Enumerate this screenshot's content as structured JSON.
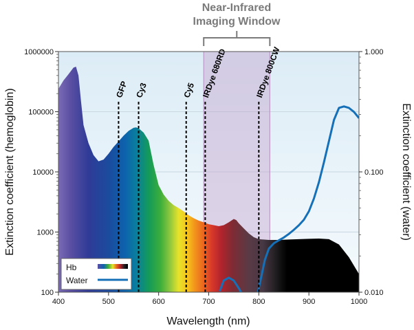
{
  "chart_data": {
    "type": "area",
    "xlabel": "Wavelength (nm)",
    "ylabel_left": "Extinction coefficient (hemoglobin)",
    "ylabel_right": "Extinction coefficient (water)",
    "xlim": [
      400,
      1000
    ],
    "ylim_left": [
      100,
      1000000
    ],
    "ylim_right": [
      0.01,
      1.0
    ],
    "yscale_left": "log",
    "yscale_right": "log",
    "x_ticks": [
      "400",
      "500",
      "600",
      "700",
      "800",
      "900",
      "1000"
    ],
    "y_ticks_left": [
      "100",
      "1000",
      "10000",
      "100000",
      "1000000"
    ],
    "y_ticks_right": [
      "0.010",
      "0.100",
      "1.000"
    ],
    "grid": true,
    "series": [
      {
        "name": "Hb",
        "axis": "left",
        "style": "spectrum-fill",
        "x": [
          400,
          410,
          420,
          430,
          435,
          440,
          445,
          450,
          460,
          470,
          480,
          490,
          500,
          510,
          520,
          530,
          540,
          550,
          555,
          560,
          570,
          580,
          590,
          600,
          610,
          620,
          630,
          640,
          650,
          660,
          670,
          680,
          690,
          700,
          710,
          720,
          730,
          740,
          750,
          755,
          760,
          770,
          780,
          790,
          800,
          820,
          840,
          860,
          880,
          900,
          920,
          940,
          960,
          980,
          1000
        ],
        "values": [
          240000,
          330000,
          420000,
          540000,
          560000,
          400000,
          150000,
          60000,
          30000,
          19000,
          15000,
          16000,
          20000,
          26000,
          32000,
          40000,
          48000,
          54000,
          55000,
          53000,
          45000,
          33000,
          13000,
          6000,
          4200,
          3300,
          2800,
          2500,
          2200,
          1900,
          1700,
          1550,
          1450,
          1350,
          1300,
          1250,
          1300,
          1450,
          1650,
          1580,
          1400,
          1150,
          950,
          820,
          760,
          740,
          740,
          750,
          760,
          770,
          780,
          760,
          620,
          380,
          200
        ]
      },
      {
        "name": "Water",
        "axis": "right",
        "color": "#1670b8",
        "segments": [
          {
            "x": [
              722,
              730,
              740,
              750,
              760,
              765
            ],
            "values": [
              0.0102,
              0.0125,
              0.0132,
              0.0125,
              0.0108,
              0.0099
            ]
          },
          {
            "x": [
              798,
              805,
              812,
              820,
              830,
              840,
              850,
              860,
              870,
              880,
              890,
              900,
              910,
              920,
              930,
              940,
              950,
              960,
              970,
              980,
              990,
              1000
            ],
            "values": [
              0.0099,
              0.0135,
              0.0185,
              0.023,
              0.0255,
              0.027,
              0.0285,
              0.0305,
              0.033,
              0.036,
              0.04,
              0.047,
              0.06,
              0.082,
              0.12,
              0.18,
              0.27,
              0.34,
              0.35,
              0.34,
              0.315,
              0.28
            ]
          }
        ]
      }
    ],
    "dyes": [
      {
        "label": "GFP",
        "x": 520
      },
      {
        "label": "Cy3",
        "x": 560
      },
      {
        "label": "Cy5",
        "x": 655
      },
      {
        "label": "IRDye 680RD",
        "x": 693
      },
      {
        "label": "IRDye 800CW",
        "x": 800
      }
    ],
    "window": {
      "title_lines": [
        "Near-Infrared",
        "Imaging Window"
      ],
      "x_range": [
        690,
        822
      ],
      "color": "#c39fcb"
    },
    "legend": {
      "position": "bottom-left",
      "entries": [
        "Hb",
        "Water"
      ]
    }
  }
}
